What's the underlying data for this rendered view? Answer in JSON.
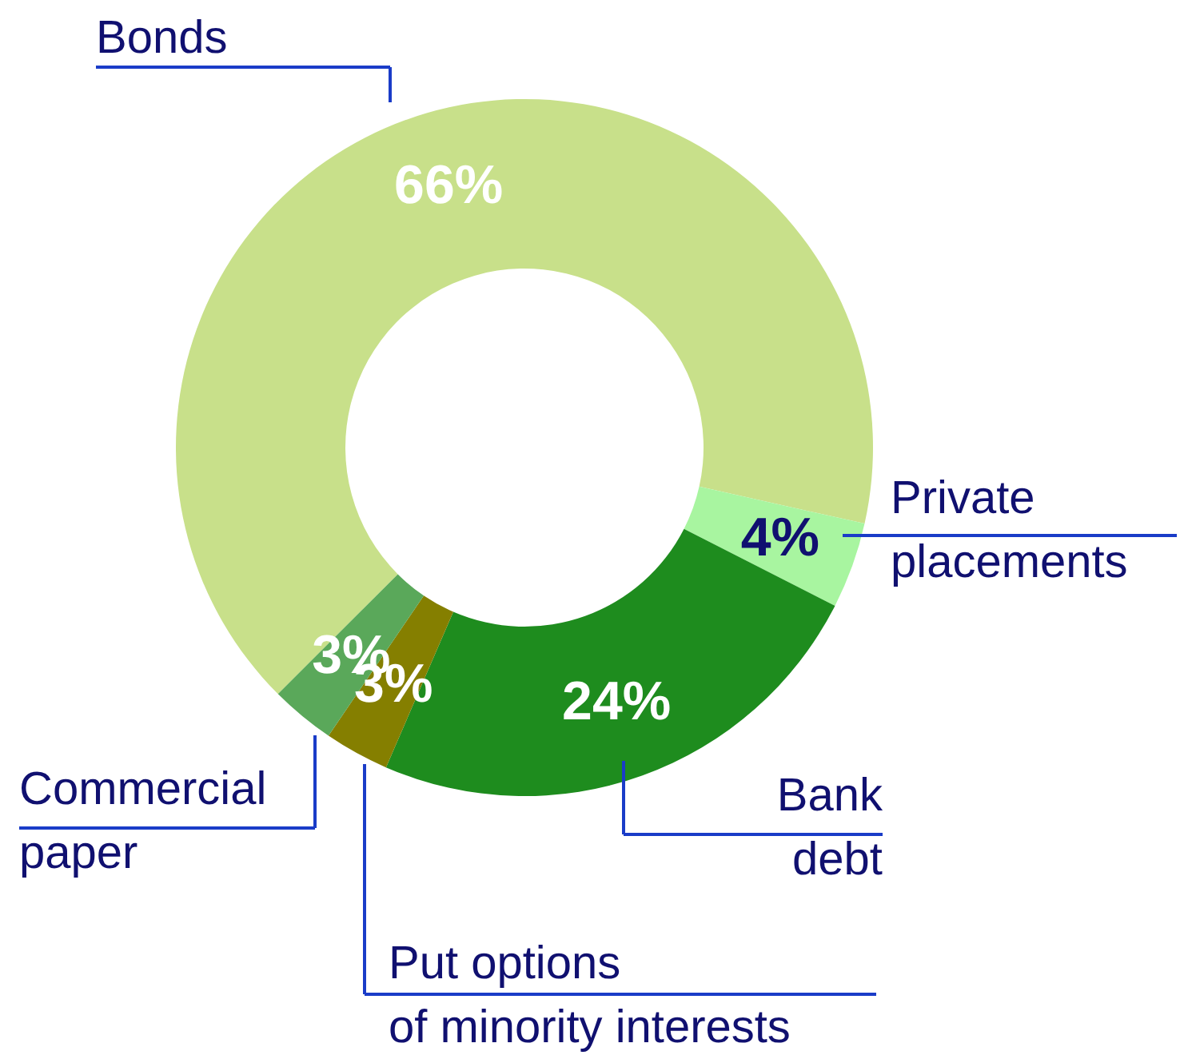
{
  "chart_data": {
    "type": "donut",
    "categories": [
      "Bonds",
      "Private\nplacements",
      "Bank\ndebt",
      "Put options\nof minority interests",
      "Commercial\npaper"
    ],
    "values": [
      66,
      4,
      24,
      3,
      3
    ],
    "value_labels": [
      "66%",
      "4%",
      "24%",
      "3%",
      "3%"
    ],
    "colors": [
      "#c8e08a",
      "#a8f5a0",
      "#1e8c1e",
      "#857f00",
      "#5aa85a"
    ]
  }
}
